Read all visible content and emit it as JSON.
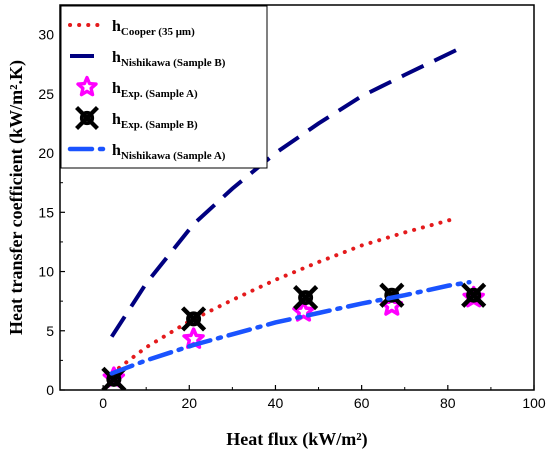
{
  "chart_data": {
    "type": "scatter",
    "xlabel": "Heat flux (kW/m²)",
    "ylabel": "Heat transfer coefficient (kW/m².K)",
    "xlim": [
      -10,
      100
    ],
    "ylim": [
      0,
      32.5
    ],
    "x_ticks": [
      0,
      20,
      40,
      60,
      80,
      100
    ],
    "y_ticks": [
      0,
      5,
      10,
      15,
      20,
      25,
      30
    ],
    "legend_position": "top-left",
    "series": [
      {
        "name": "h_Cooper (35 μm)",
        "label_main": "h",
        "label_sub": "Cooper (35 μm)",
        "kind": "line",
        "dash": "dot",
        "color": "#e41a1c",
        "x": [
          2,
          10,
          20,
          30,
          40,
          50,
          60,
          70,
          82
        ],
        "y": [
          1.4,
          3.6,
          5.8,
          7.6,
          9.3,
          10.8,
          12.2,
          13.3,
          14.5
        ]
      },
      {
        "name": "h_Nishikawa (Sample B)",
        "label_main": "h",
        "label_sub": "Nishikawa (Sample B)",
        "kind": "line",
        "dash": "dash",
        "color": "#000080",
        "x": [
          2,
          10,
          21,
          30,
          40,
          50,
          60,
          70,
          82
        ],
        "y": [
          4.5,
          9.0,
          14.0,
          17.0,
          20.0,
          22.5,
          24.8,
          26.6,
          28.7
        ]
      },
      {
        "name": "h_Exp. (Sample A)",
        "label_main": "h",
        "label_sub": "Exp. (Sample A)",
        "kind": "marker",
        "marker": "star",
        "color": "#ff00ff",
        "x": [
          2.5,
          21,
          46.5,
          67,
          86
        ],
        "y": [
          1.0,
          4.3,
          6.6,
          7.1,
          7.8
        ]
      },
      {
        "name": "h_Exp. (Sample B)",
        "label_main": "h",
        "label_sub": "Exp. (Sample B)",
        "kind": "marker",
        "marker": "xcircle",
        "color": "#000000",
        "x": [
          2.5,
          21,
          47,
          67,
          86
        ],
        "y": [
          0.9,
          6.0,
          7.8,
          8.0,
          8.0
        ]
      },
      {
        "name": "h_Nishikawa (Sample A)",
        "label_main": "h",
        "label_sub": "Nishikawa (Sample A)",
        "kind": "line",
        "dash": "dashdot",
        "color": "#1a53ff",
        "x": [
          2,
          10,
          21,
          30,
          40,
          50,
          60,
          70,
          80,
          85
        ],
        "y": [
          1.4,
          2.5,
          3.8,
          4.7,
          5.7,
          6.5,
          7.3,
          8.0,
          8.8,
          9.1
        ]
      }
    ]
  }
}
